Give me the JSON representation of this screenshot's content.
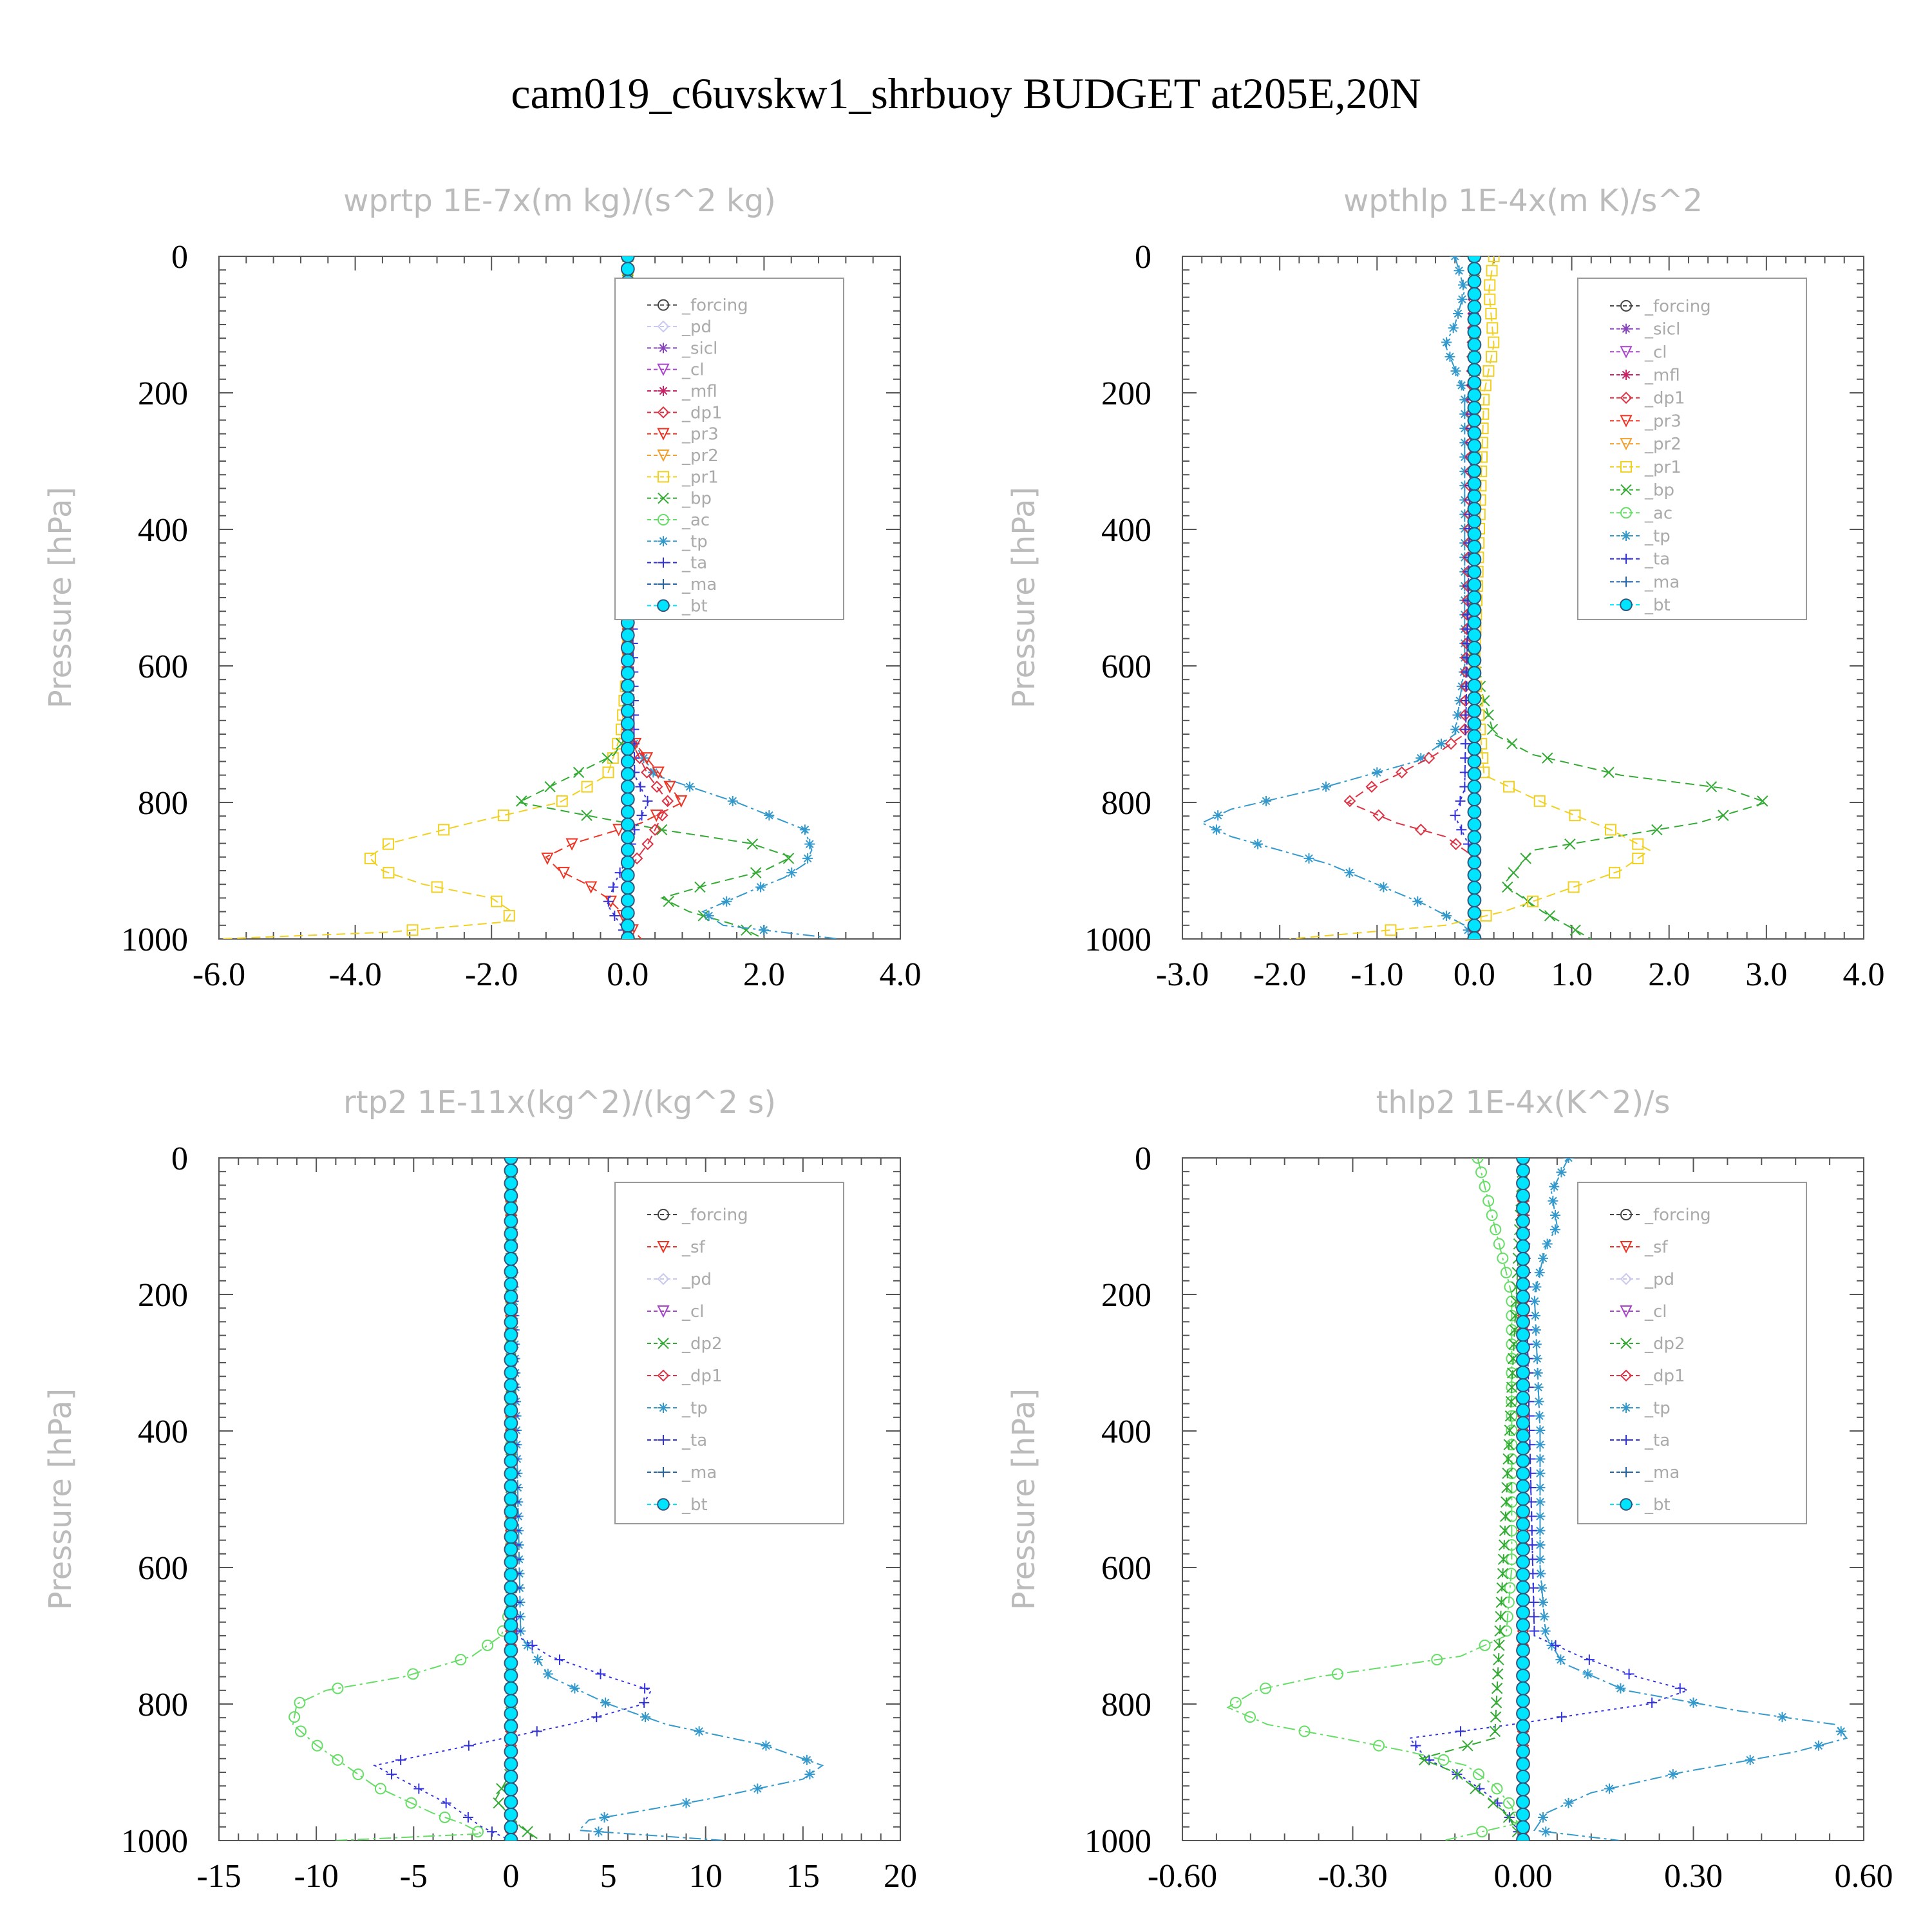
{
  "figure_title": "cam019_c6uvskw1_shrbuoy  BUDGET at205E,20N",
  "colors": {
    "forcing": "#444444",
    "pd": "#c8c8f0",
    "sicl": "#8844bb",
    "cl_purple": "#aa44cc",
    "mfl": "#cc2266",
    "dp1_red": "#dd3344",
    "pr3": "#ee3322",
    "pr2": "#f0a030",
    "pr1": "#f0d020",
    "bp": "#33aa33",
    "ac": "#66dd66",
    "tp": "#3399cc",
    "ta": "#3333dd",
    "ma": "#2266aa",
    "bt": "#00e5ff"
  },
  "chart_data": [
    {
      "type": "line",
      "title": "wprtp  1E-7x(m kg)/(s^2 kg)",
      "ylabel": "Pressure [hPa]",
      "xlim": [
        -6,
        4
      ],
      "ylim": [
        0,
        1000
      ],
      "xticks": [
        -6,
        -4,
        -2,
        0,
        2,
        4
      ],
      "xtick_labels": [
        "-6.0",
        "-4.0",
        "-2.0",
        "0.0",
        "2.0",
        "4.0"
      ],
      "yticks": [
        0,
        200,
        400,
        600,
        800,
        1000
      ],
      "ytick_labels": [
        "0",
        "200",
        "400",
        "600",
        "800",
        "1000"
      ],
      "legend": [
        "_forcing",
        "_pd",
        "_sicl",
        "_cl",
        "_mfl",
        "_dp1",
        "_pr3",
        "_pr2",
        "_pr1",
        "_bp",
        "_ac",
        "_tp",
        "_ta",
        "_ma",
        "_bt"
      ],
      "series": [
        {
          "name": "_pr1",
          "color": "pr1",
          "marker": "square",
          "style": "dash",
          "p": [
            0,
            600,
            700,
            760,
            800,
            830,
            860,
            880,
            900,
            920,
            940,
            960,
            975,
            990,
            1000
          ],
          "x": [
            0,
            0,
            -0.1,
            -0.3,
            -1.0,
            -2.3,
            -3.5,
            -3.8,
            -3.6,
            -3.0,
            -2.0,
            -1.7,
            -1.8,
            -3.5,
            -6.0
          ]
        },
        {
          "name": "_bp",
          "color": "bp",
          "marker": "x",
          "style": "dash",
          "p": [
            0,
            700,
            730,
            760,
            800,
            840,
            860,
            880,
            900,
            920,
            940,
            960,
            980,
            1000
          ],
          "x": [
            0,
            0,
            -0.2,
            -0.8,
            -1.6,
            0.5,
            1.8,
            2.4,
            2.0,
            1.2,
            0.5,
            0.9,
            1.6,
            2.0
          ]
        },
        {
          "name": "_tp",
          "color": "tp",
          "marker": "asterisk",
          "style": "dashdot",
          "p": [
            0,
            700,
            760,
            800,
            840,
            870,
            890,
            910,
            930,
            960,
            980,
            1000
          ],
          "x": [
            0,
            0,
            0.4,
            1.6,
            2.6,
            2.7,
            2.6,
            2.3,
            1.8,
            1.1,
            1.4,
            3.1
          ]
        },
        {
          "name": "_pr3",
          "color": "pr3",
          "marker": "triangle-down",
          "style": "dash",
          "p": [
            0,
            700,
            750,
            800,
            830,
            860,
            880,
            900,
            920,
            940,
            960,
            980,
            1000
          ],
          "x": [
            0,
            0,
            0.4,
            0.8,
            0.2,
            -0.8,
            -1.2,
            -1.0,
            -0.6,
            -0.3,
            -0.1,
            0,
            0.2
          ]
        },
        {
          "name": "_ta",
          "color": "ta",
          "marker": "plus",
          "style": "dot",
          "p": [
            0,
            760,
            800,
            840,
            880,
            920,
            950,
            980,
            1000
          ],
          "x": [
            0,
            0.1,
            0.3,
            0.1,
            0,
            -0.2,
            -0.3,
            -0.1,
            0
          ]
        },
        {
          "name": "_dp1",
          "color": "dp1_red",
          "marker": "diamond",
          "style": "dash",
          "p": [
            0,
            700,
            760,
            800,
            860,
            900,
            1000
          ],
          "x": [
            0,
            0,
            0.3,
            0.6,
            0.3,
            0,
            0
          ]
        },
        {
          "name": "_bt",
          "color": "bt",
          "marker": "dot-big",
          "style": "solid",
          "p": [
            0,
            1000
          ],
          "x": [
            0,
            0
          ]
        }
      ]
    },
    {
      "type": "line",
      "title": "wpthlp  1E-4x(m K)/s^2",
      "ylabel": "Pressure [hPa]",
      "xlim": [
        -3,
        4
      ],
      "ylim": [
        0,
        1000
      ],
      "xticks": [
        -3,
        -2,
        -1,
        0,
        1,
        2,
        3,
        4
      ],
      "xtick_labels": [
        "-3.0",
        "-2.0",
        "-1.0",
        "0.0",
        "1.0",
        "2.0",
        "3.0",
        "4.0"
      ],
      "yticks": [
        0,
        200,
        400,
        600,
        800,
        1000
      ],
      "ytick_labels": [
        "0",
        "200",
        "400",
        "600",
        "800",
        "1000"
      ],
      "legend": [
        "_forcing",
        "_sicl",
        "_cl",
        "_mfl",
        "_dp1",
        "_pr3",
        "_pr2",
        "_pr1",
        "_bp",
        "_ac",
        "_tp",
        "_ta",
        "_ma",
        "_bt"
      ],
      "series": [
        {
          "name": "_tp",
          "color": "tp",
          "marker": "asterisk",
          "style": "dashdot",
          "p": [
            0,
            50,
            100,
            130,
            200,
            600,
            700,
            740,
            780,
            810,
            830,
            850,
            870,
            890,
            920,
            950,
            980,
            1000
          ],
          "x": [
            -0.2,
            -0.1,
            -0.2,
            -0.3,
            -0.1,
            -0.1,
            -0.2,
            -0.6,
            -1.6,
            -2.5,
            -2.8,
            -2.5,
            -2.0,
            -1.5,
            -1.0,
            -0.5,
            -0.1,
            0
          ]
        },
        {
          "name": "_bp",
          "color": "bp",
          "marker": "x",
          "style": "dash",
          "p": [
            0,
            600,
            700,
            730,
            760,
            780,
            800,
            830,
            870,
            920,
            960,
            1000
          ],
          "x": [
            0,
            0,
            0.2,
            0.6,
            1.5,
            2.6,
            3.0,
            2.3,
            0.6,
            0.3,
            0.7,
            1.2
          ]
        },
        {
          "name": "_pr1",
          "color": "pr1",
          "marker": "square",
          "style": "dash",
          "p": [
            0,
            50,
            130,
            200,
            600,
            760,
            800,
            840,
            870,
            900,
            930,
            960,
            980,
            1000
          ],
          "x": [
            0.2,
            0.15,
            0.2,
            0.1,
            0,
            0.1,
            0.7,
            1.4,
            1.8,
            1.5,
            0.9,
            0.3,
            -0.3,
            -1.9
          ]
        },
        {
          "name": "_dp1",
          "color": "dp1_red",
          "marker": "diamond",
          "style": "dash",
          "p": [
            0,
            700,
            730,
            760,
            780,
            800,
            830,
            850,
            880,
            1000
          ],
          "x": [
            0,
            -0.1,
            -0.4,
            -0.8,
            -1.1,
            -1.3,
            -0.8,
            -0.3,
            0,
            0
          ]
        },
        {
          "name": "_ta",
          "color": "ta",
          "marker": "plus",
          "style": "dot",
          "p": [
            0,
            780,
            820,
            850,
            880,
            1000
          ],
          "x": [
            0,
            -0.1,
            -0.2,
            -0.1,
            0,
            0
          ]
        },
        {
          "name": "_bt",
          "color": "bt",
          "marker": "dot-big",
          "style": "solid",
          "p": [
            0,
            1000
          ],
          "x": [
            0,
            0
          ]
        }
      ]
    },
    {
      "type": "line",
      "title": "rtp2  1E-11x(kg^2)/(kg^2 s)",
      "ylabel": "Pressure [hPa]",
      "xlim": [
        -15,
        20
      ],
      "ylim": [
        0,
        1000
      ],
      "xticks": [
        -15,
        -10,
        -5,
        0,
        5,
        10,
        15,
        20
      ],
      "xtick_labels": [
        "-15",
        "-10",
        "-5",
        "0",
        "5",
        "10",
        "15",
        "20"
      ],
      "yticks": [
        0,
        200,
        400,
        600,
        800,
        1000
      ],
      "ytick_labels": [
        "0",
        "200",
        "400",
        "600",
        "800",
        "1000"
      ],
      "legend": [
        "_forcing",
        "_sf",
        "_pd",
        "_cl",
        "_dp2",
        "_dp1",
        "_tp",
        "_ta",
        "_ma",
        "_bt"
      ],
      "series": [
        {
          "name": "_dp1",
          "color": "ac",
          "marker": "circle",
          "style": "dashdot",
          "p": [
            0,
            660,
            700,
            730,
            760,
            780,
            800,
            830,
            860,
            880,
            900,
            920,
            940,
            960,
            975,
            990,
            1000
          ],
          "x": [
            0,
            0,
            -0.5,
            -2.0,
            -5.5,
            -9.5,
            -11.0,
            -11.2,
            -10.0,
            -9.0,
            -8.0,
            -7.0,
            -5.5,
            -4.0,
            -2.5,
            -1.5,
            -9.0
          ]
        },
        {
          "name": "_tp",
          "color": "tp",
          "marker": "asterisk",
          "style": "dashdot",
          "p": [
            0,
            700,
            760,
            800,
            830,
            860,
            890,
            910,
            940,
            970,
            985,
            1000
          ],
          "x": [
            0,
            0.5,
            2.0,
            5.0,
            8.0,
            13.0,
            16.0,
            15.0,
            10.0,
            4.0,
            3.5,
            11.0
          ]
        },
        {
          "name": "_ta",
          "color": "ta",
          "marker": "plus",
          "style": "dot",
          "p": [
            0,
            700,
            730,
            760,
            780,
            800,
            830,
            860,
            890,
            920,
            950,
            980,
            1000
          ],
          "x": [
            0,
            0.3,
            2.0,
            5.0,
            7.2,
            6.8,
            3.0,
            -2.0,
            -7.0,
            -5.0,
            -3.0,
            -1.5,
            0
          ]
        },
        {
          "name": "_dp2",
          "color": "bp",
          "marker": "x",
          "style": "dash",
          "p": [
            0,
            900,
            940,
            980,
            1000
          ],
          "x": [
            0,
            0,
            -0.8,
            0.5,
            1.5
          ]
        },
        {
          "name": "_forcing",
          "color": "pr3",
          "marker": "diamond",
          "style": "solid",
          "p": [
            0,
            1000
          ],
          "x": [
            0,
            0
          ]
        },
        {
          "name": "_bt",
          "color": "bt",
          "marker": "dot-big",
          "style": "solid",
          "p": [
            0,
            1000
          ],
          "x": [
            0,
            0
          ]
        }
      ]
    },
    {
      "type": "line",
      "title": "thlp2  1E-4x(K^2)/s",
      "ylabel": "Pressure [hPa]",
      "xlim": [
        -0.6,
        0.6
      ],
      "ylim": [
        0,
        1000
      ],
      "xticks": [
        -0.6,
        -0.3,
        0,
        0.3,
        0.6
      ],
      "xtick_labels": [
        "-0.60",
        "-0.30",
        "0.00",
        "0.30",
        "0.60"
      ],
      "yticks": [
        0,
        200,
        400,
        600,
        800,
        1000
      ],
      "ytick_labels": [
        "0",
        "200",
        "400",
        "600",
        "800",
        "1000"
      ],
      "legend": [
        "_forcing",
        "_sf",
        "_pd",
        "_cl",
        "_dp2",
        "_dp1",
        "_tp",
        "_ta",
        "_ma",
        "_bt"
      ],
      "series": [
        {
          "name": "_tp",
          "color": "tp",
          "marker": "asterisk",
          "style": "dashdot",
          "p": [
            0,
            50,
            100,
            130,
            200,
            400,
            600,
            700,
            740,
            780,
            810,
            830,
            850,
            870,
            900,
            930,
            960,
            985,
            1000
          ],
          "x": [
            0.08,
            0.05,
            0.06,
            0.04,
            0.02,
            0.03,
            0.03,
            0.04,
            0.07,
            0.18,
            0.38,
            0.55,
            0.57,
            0.48,
            0.28,
            0.12,
            0.04,
            0.02,
            0.17
          ]
        },
        {
          "name": "_dp1",
          "color": "ac",
          "marker": "circle",
          "style": "dashdot",
          "p": [
            0,
            100,
            200,
            600,
            700,
            730,
            760,
            780,
            805,
            830,
            850,
            870,
            890,
            920,
            950,
            975,
            1000
          ],
          "x": [
            -0.08,
            -0.05,
            -0.02,
            -0.02,
            -0.03,
            -0.11,
            -0.36,
            -0.47,
            -0.52,
            -0.45,
            -0.32,
            -0.2,
            -0.1,
            -0.05,
            -0.02,
            -0.01,
            -0.14
          ]
        },
        {
          "name": "_ta",
          "color": "ta",
          "marker": "plus",
          "style": "dot",
          "p": [
            0,
            700,
            730,
            760,
            780,
            800,
            830,
            850,
            880,
            910,
            940,
            970,
            1000
          ],
          "x": [
            0,
            0.02,
            0.1,
            0.2,
            0.29,
            0.22,
            -0.02,
            -0.2,
            -0.17,
            -0.1,
            -0.05,
            -0.02,
            0
          ]
        },
        {
          "name": "_dp2",
          "color": "bp",
          "marker": "x",
          "style": "dash",
          "p": [
            0,
            850,
            880,
            900,
            960,
            1000
          ],
          "x": [
            0,
            -0.05,
            -0.18,
            -0.12,
            -0.03,
            0
          ]
        },
        {
          "name": "_forcing",
          "color": "pr3",
          "marker": "diamond",
          "style": "solid",
          "p": [
            0,
            1000
          ],
          "x": [
            0,
            0
          ]
        },
        {
          "name": "_bt",
          "color": "bt",
          "marker": "dot-big",
          "style": "solid",
          "p": [
            0,
            1000
          ],
          "x": [
            0,
            0
          ]
        }
      ]
    }
  ],
  "legend_colors": {
    "_forcing": "forcing",
    "_pd": "pd",
    "_sicl": "sicl",
    "_cl": "cl_purple",
    "_mfl": "mfl",
    "_dp1": "dp1_red",
    "_pr3": "pr3",
    "_pr2": "pr2",
    "_pr1": "pr1",
    "_bp": "bp",
    "_ac": "ac",
    "_tp": "tp",
    "_ta": "ta",
    "_ma": "ma",
    "_bt": "bt",
    "_sf": "pr3",
    "_dp2": "bp"
  }
}
